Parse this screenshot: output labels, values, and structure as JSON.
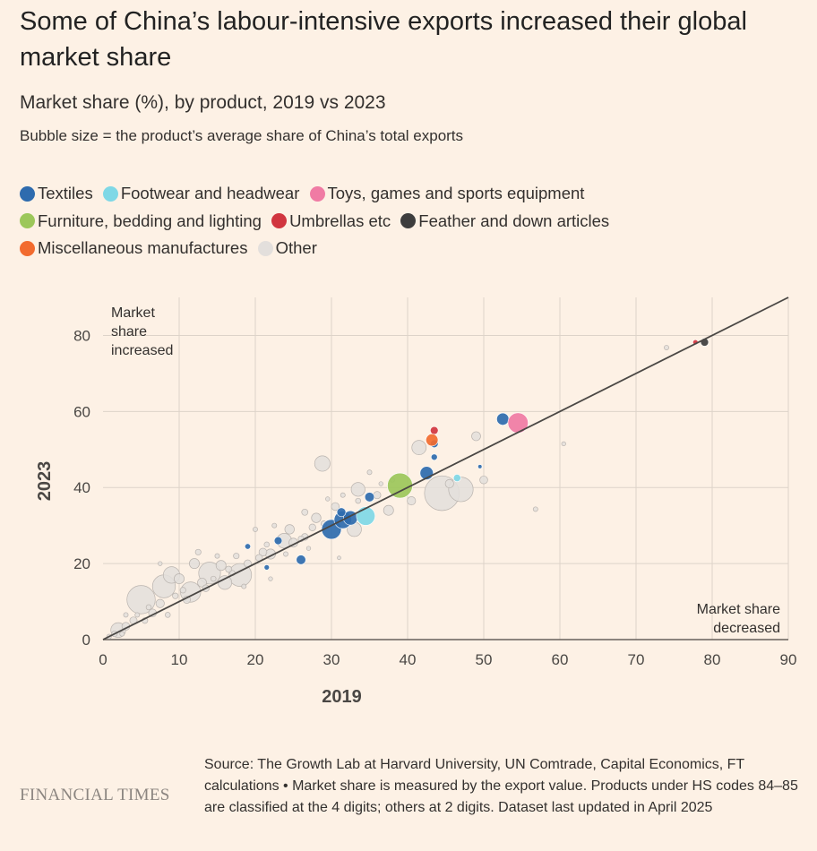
{
  "title": "Some of China’s labour-intensive exports increased their global market share",
  "subtitle": "Market share (%), by product, 2019 vs 2023",
  "note": "Bubble size = the product’s average share of China’s total exports",
  "legend": [
    {
      "label": "Textiles",
      "color": "#2e6bae"
    },
    {
      "label": "Footwear and headwear",
      "color": "#7fd8e6"
    },
    {
      "label": "Toys, games and sports equipment",
      "color": "#f07ba4"
    },
    {
      "label": "Furniture, bedding and lighting",
      "color": "#9cc75a"
    },
    {
      "label": "Umbrellas etc",
      "color": "#d1353f"
    },
    {
      "label": "Feather and down articles",
      "color": "#3d3d3d"
    },
    {
      "label": "Miscellaneous manufactures",
      "color": "#f26b2f"
    },
    {
      "label": "Other",
      "color": "#e3dfdc"
    }
  ],
  "chart_data": {
    "type": "scatter",
    "xlabel": "2019",
    "ylabel": "2023",
    "xlim": [
      0,
      90
    ],
    "ylim": [
      0,
      90
    ],
    "xticks": [
      0,
      10,
      20,
      30,
      40,
      50,
      60,
      70,
      80,
      90
    ],
    "yticks": [
      0,
      20,
      40,
      60,
      80
    ],
    "grid": true,
    "reference_line": {
      "from": [
        0,
        0
      ],
      "to": [
        90,
        90
      ]
    },
    "annotations": {
      "top_left": [
        "Market",
        "share",
        "increased"
      ],
      "bottom_right": [
        "Market share",
        "decreased"
      ]
    },
    "series": [
      {
        "name": "Textiles",
        "color": "#2e6bae",
        "points": [
          {
            "x": 30,
            "y": 29,
            "s": 3.4
          },
          {
            "x": 31.5,
            "y": 31.5,
            "s": 3.0
          },
          {
            "x": 32.5,
            "y": 32,
            "s": 2.4
          },
          {
            "x": 31.3,
            "y": 33.5,
            "s": 1.4
          },
          {
            "x": 42.5,
            "y": 43.8,
            "s": 2.2
          },
          {
            "x": 52.5,
            "y": 58,
            "s": 2.0
          },
          {
            "x": 35,
            "y": 37.5,
            "s": 1.5
          },
          {
            "x": 26,
            "y": 21,
            "s": 1.5
          },
          {
            "x": 23,
            "y": 26,
            "s": 1.2
          },
          {
            "x": 43.5,
            "y": 51.5,
            "s": 1.2
          },
          {
            "x": 43.5,
            "y": 48,
            "s": 0.9
          },
          {
            "x": 19,
            "y": 24.5,
            "s": 0.8
          },
          {
            "x": 21.5,
            "y": 19,
            "s": 0.7
          },
          {
            "x": 49.5,
            "y": 45.5,
            "s": 0.5
          }
        ]
      },
      {
        "name": "Footwear and headwear",
        "color": "#7fd8e6",
        "points": [
          {
            "x": 34.5,
            "y": 32.5,
            "s": 3.2
          },
          {
            "x": 46.5,
            "y": 42.5,
            "s": 1.1
          }
        ]
      },
      {
        "name": "Toys, games and sports equipment",
        "color": "#f07ba4",
        "points": [
          {
            "x": 54.5,
            "y": 57,
            "s": 3.5
          }
        ]
      },
      {
        "name": "Furniture, bedding and lighting",
        "color": "#9cc75a",
        "points": [
          {
            "x": 39,
            "y": 40.5,
            "s": 4.4
          }
        ]
      },
      {
        "name": "Umbrellas etc",
        "color": "#d1353f",
        "points": [
          {
            "x": 43.5,
            "y": 55,
            "s": 1.2
          },
          {
            "x": 77.8,
            "y": 78.2,
            "s": 0.7
          }
        ]
      },
      {
        "name": "Feather and down articles",
        "color": "#3d3d3d",
        "points": [
          {
            "x": 79,
            "y": 78.2,
            "s": 1.2
          }
        ]
      },
      {
        "name": "Miscellaneous manufactures",
        "color": "#f26b2f",
        "points": [
          {
            "x": 43.2,
            "y": 52.5,
            "s": 2.0
          }
        ]
      },
      {
        "name": "Other",
        "color": "#e3dfdc",
        "points": [
          {
            "x": 44.5,
            "y": 38.5,
            "s": 6.2
          },
          {
            "x": 47,
            "y": 39.5,
            "s": 4.3
          },
          {
            "x": 5,
            "y": 10.5,
            "s": 5.0
          },
          {
            "x": 8,
            "y": 14,
            "s": 4.0
          },
          {
            "x": 14,
            "y": 17.5,
            "s": 3.8
          },
          {
            "x": 18,
            "y": 17,
            "s": 4.0
          },
          {
            "x": 11.5,
            "y": 12.5,
            "s": 3.5
          },
          {
            "x": 2,
            "y": 2.5,
            "s": 2.5
          },
          {
            "x": 9,
            "y": 17,
            "s": 2.8
          },
          {
            "x": 28.8,
            "y": 46.3,
            "s": 2.6
          },
          {
            "x": 33.5,
            "y": 39.5,
            "s": 2.3
          },
          {
            "x": 41.5,
            "y": 50.5,
            "s": 2.4
          },
          {
            "x": 33,
            "y": 29,
            "s": 2.4
          },
          {
            "x": 23.8,
            "y": 26,
            "s": 2.5
          },
          {
            "x": 16,
            "y": 15,
            "s": 2.3
          },
          {
            "x": 12,
            "y": 20,
            "s": 1.6
          },
          {
            "x": 15.5,
            "y": 19.5,
            "s": 1.6
          },
          {
            "x": 10,
            "y": 16,
            "s": 1.6
          },
          {
            "x": 13,
            "y": 15,
            "s": 1.4
          },
          {
            "x": 7.5,
            "y": 9.5,
            "s": 1.3
          },
          {
            "x": 6.5,
            "y": 7,
            "s": 1.2
          },
          {
            "x": 4,
            "y": 5,
            "s": 1.1
          },
          {
            "x": 3,
            "y": 3.5,
            "s": 1.2
          },
          {
            "x": 22,
            "y": 22.5,
            "s": 1.6
          },
          {
            "x": 21,
            "y": 23,
            "s": 1.2
          },
          {
            "x": 25,
            "y": 25.5,
            "s": 1.4
          },
          {
            "x": 24.5,
            "y": 29,
            "s": 1.5
          },
          {
            "x": 28,
            "y": 32,
            "s": 1.5
          },
          {
            "x": 30.5,
            "y": 35,
            "s": 1.2
          },
          {
            "x": 37.5,
            "y": 34,
            "s": 1.6
          },
          {
            "x": 40.5,
            "y": 36.5,
            "s": 1.3
          },
          {
            "x": 36,
            "y": 38,
            "s": 1.1
          },
          {
            "x": 49,
            "y": 53.5,
            "s": 1.4
          },
          {
            "x": 50,
            "y": 42,
            "s": 1.2
          },
          {
            "x": 45.5,
            "y": 41,
            "s": 1.3
          },
          {
            "x": 26.5,
            "y": 27,
            "s": 1.0
          },
          {
            "x": 27.5,
            "y": 29.5,
            "s": 1.0
          },
          {
            "x": 26.5,
            "y": 33.5,
            "s": 0.9
          },
          {
            "x": 20.5,
            "y": 21.5,
            "s": 1.0
          },
          {
            "x": 19,
            "y": 20,
            "s": 1.1
          },
          {
            "x": 17.5,
            "y": 22,
            "s": 0.8
          },
          {
            "x": 16.5,
            "y": 18.5,
            "s": 0.9
          },
          {
            "x": 13.5,
            "y": 13.5,
            "s": 1.0
          },
          {
            "x": 11,
            "y": 10.5,
            "s": 1.1
          },
          {
            "x": 9.5,
            "y": 11.5,
            "s": 0.8
          },
          {
            "x": 8.5,
            "y": 6.5,
            "s": 0.7
          },
          {
            "x": 5.5,
            "y": 5,
            "s": 0.8
          },
          {
            "x": 1.5,
            "y": 1.5,
            "s": 0.8
          },
          {
            "x": 0.8,
            "y": 0.8,
            "s": 0.6
          },
          {
            "x": 3,
            "y": 6.5,
            "s": 0.6
          },
          {
            "x": 4.5,
            "y": 6.5,
            "s": 0.6
          },
          {
            "x": 12.5,
            "y": 23,
            "s": 0.8
          },
          {
            "x": 15,
            "y": 22,
            "s": 0.6
          },
          {
            "x": 20,
            "y": 29,
            "s": 0.6
          },
          {
            "x": 22.5,
            "y": 30,
            "s": 0.6
          },
          {
            "x": 29.5,
            "y": 37,
            "s": 0.5
          },
          {
            "x": 31.5,
            "y": 38,
            "s": 0.6
          },
          {
            "x": 35,
            "y": 44,
            "s": 0.6
          },
          {
            "x": 38,
            "y": 42,
            "s": 0.6
          },
          {
            "x": 56.8,
            "y": 34.3,
            "s": 0.6
          },
          {
            "x": 60.5,
            "y": 51.5,
            "s": 0.5
          },
          {
            "x": 74,
            "y": 76.8,
            "s": 0.6
          },
          {
            "x": 18.5,
            "y": 14,
            "s": 0.6
          },
          {
            "x": 22,
            "y": 16,
            "s": 0.5
          },
          {
            "x": 31,
            "y": 21.5,
            "s": 0.4
          },
          {
            "x": 7.5,
            "y": 20,
            "s": 0.5
          },
          {
            "x": 26,
            "y": 26.5,
            "s": 0.8
          },
          {
            "x": 29,
            "y": 30.5,
            "s": 0.8
          },
          {
            "x": 10.5,
            "y": 13,
            "s": 0.8
          },
          {
            "x": 14.5,
            "y": 16,
            "s": 0.7
          },
          {
            "x": 17,
            "y": 17.5,
            "s": 0.7
          },
          {
            "x": 21.5,
            "y": 25,
            "s": 0.7
          },
          {
            "x": 24,
            "y": 22.5,
            "s": 0.6
          },
          {
            "x": 2.5,
            "y": 1.5,
            "s": 0.6
          },
          {
            "x": 6,
            "y": 8.5,
            "s": 0.7
          },
          {
            "x": 27,
            "y": 24,
            "s": 0.5
          },
          {
            "x": 33.5,
            "y": 36.5,
            "s": 0.7
          },
          {
            "x": 36.5,
            "y": 41,
            "s": 0.5
          }
        ]
      }
    ]
  },
  "source": "Source: The Growth Lab at Harvard University, UN Comtrade, Capital Economics, FT calculations • Market share is measured by the export value. Products under HS codes 84–85 are classified at the 4 digits; others at 2 digits. Dataset last updated in April 2025",
  "brand": "FINANCIAL TIMES"
}
